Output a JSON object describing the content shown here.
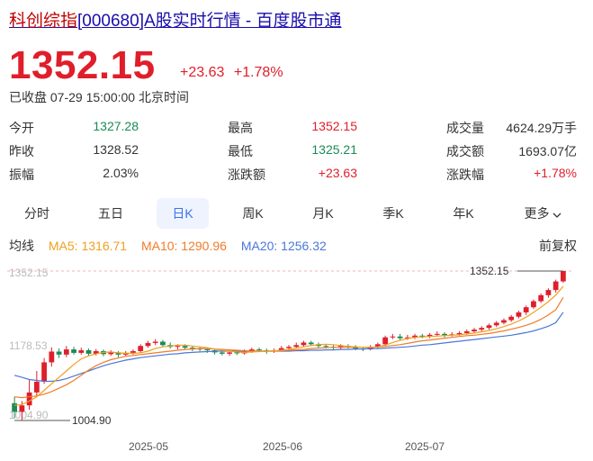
{
  "page": {
    "title_highlight": "科创综指",
    "title_rest": "[000680]A股实时行情 - 百度股市通"
  },
  "quote": {
    "price": "1352.15",
    "change": "+23.63",
    "change_pct": "+1.78%",
    "status": "已收盘 07-29 15:00:00 北京时间"
  },
  "stats": [
    [
      {
        "label": "今开",
        "value": "1327.28",
        "color": "green"
      },
      {
        "label": "最高",
        "value": "1352.15",
        "color": "red"
      },
      {
        "label": "成交量",
        "value": "4624.29万手",
        "color": "plain"
      }
    ],
    [
      {
        "label": "昨收",
        "value": "1328.52",
        "color": "plain"
      },
      {
        "label": "最低",
        "value": "1325.21",
        "color": "green"
      },
      {
        "label": "成交额",
        "value": "1693.07亿",
        "color": "plain"
      }
    ],
    [
      {
        "label": "振幅",
        "value": "2.03%",
        "color": "plain"
      },
      {
        "label": "涨跌额",
        "value": "+23.63",
        "color": "red"
      },
      {
        "label": "涨跌幅",
        "value": "+1.78%",
        "color": "red"
      }
    ]
  ],
  "tabs": [
    "分时",
    "五日",
    "日K",
    "周K",
    "月K",
    "季K",
    "年K",
    "更多"
  ],
  "active_tab": "日K",
  "legend": {
    "label": "均线",
    "ma5": "MA5: 1316.71",
    "ma10": "MA10: 1290.96",
    "ma20": "MA20: 1256.32",
    "adjust": "前复权"
  },
  "colors": {
    "up": "#e01e2b",
    "down": "#1a8a56",
    "ma5": "#f0a020",
    "ma10": "#f07b2a",
    "ma20": "#4a78d8",
    "accent": "#3a73e8"
  },
  "chart_data": {
    "type": "candlestick",
    "y_labels": [
      "1352.15",
      "1178.53",
      "1004.90"
    ],
    "max_marker": "1352.15",
    "min_marker": "1004.90",
    "x_labels": [
      "2025-05",
      "2025-06",
      "2025-07"
    ],
    "ylim": [
      1004.9,
      1352.15
    ],
    "candles": [
      [
        1045,
        1025,
        1060,
        1010
      ],
      [
        1025,
        1040,
        1050,
        1005
      ],
      [
        1040,
        1070,
        1100,
        1030
      ],
      [
        1070,
        1095,
        1120,
        1060
      ],
      [
        1095,
        1140,
        1150,
        1090
      ],
      [
        1140,
        1165,
        1175,
        1130
      ],
      [
        1165,
        1158,
        1172,
        1150
      ],
      [
        1158,
        1170,
        1178,
        1152
      ],
      [
        1170,
        1162,
        1176,
        1158
      ],
      [
        1162,
        1168,
        1174,
        1158
      ],
      [
        1168,
        1160,
        1172,
        1155
      ],
      [
        1160,
        1166,
        1171,
        1156
      ],
      [
        1166,
        1159,
        1170,
        1154
      ],
      [
        1159,
        1163,
        1168,
        1155
      ],
      [
        1163,
        1158,
        1166,
        1152
      ],
      [
        1158,
        1162,
        1166,
        1154
      ],
      [
        1162,
        1166,
        1170,
        1158
      ],
      [
        1166,
        1178,
        1182,
        1162
      ],
      [
        1178,
        1185,
        1190,
        1174
      ],
      [
        1185,
        1188,
        1194,
        1180
      ],
      [
        1188,
        1180,
        1192,
        1176
      ],
      [
        1180,
        1176,
        1186,
        1172
      ],
      [
        1176,
        1178,
        1182,
        1170
      ],
      [
        1178,
        1174,
        1182,
        1170
      ],
      [
        1174,
        1172,
        1178,
        1166
      ],
      [
        1172,
        1170,
        1176,
        1166
      ],
      [
        1170,
        1168,
        1174,
        1162
      ],
      [
        1168,
        1163,
        1172,
        1158
      ],
      [
        1163,
        1160,
        1168,
        1156
      ],
      [
        1160,
        1163,
        1167,
        1155
      ],
      [
        1163,
        1161,
        1166,
        1157
      ],
      [
        1161,
        1165,
        1170,
        1158
      ],
      [
        1165,
        1170,
        1174,
        1162
      ],
      [
        1170,
        1168,
        1174,
        1164
      ],
      [
        1168,
        1165,
        1172,
        1160
      ],
      [
        1165,
        1168,
        1172,
        1162
      ],
      [
        1168,
        1173,
        1178,
        1165
      ],
      [
        1173,
        1176,
        1180,
        1170
      ],
      [
        1176,
        1180,
        1186,
        1172
      ],
      [
        1180,
        1186,
        1190,
        1176
      ],
      [
        1186,
        1182,
        1190,
        1178
      ],
      [
        1182,
        1178,
        1186,
        1174
      ],
      [
        1178,
        1176,
        1182,
        1172
      ],
      [
        1176,
        1174,
        1180,
        1170
      ],
      [
        1174,
        1178,
        1182,
        1170
      ],
      [
        1178,
        1176,
        1182,
        1172
      ],
      [
        1176,
        1172,
        1180,
        1168
      ],
      [
        1172,
        1170,
        1176,
        1166
      ],
      [
        1170,
        1176,
        1180,
        1168
      ],
      [
        1176,
        1182,
        1186,
        1172
      ],
      [
        1182,
        1198,
        1202,
        1178
      ],
      [
        1198,
        1200,
        1206,
        1194
      ],
      [
        1200,
        1196,
        1206,
        1192
      ],
      [
        1196,
        1198,
        1204,
        1192
      ],
      [
        1198,
        1202,
        1206,
        1194
      ],
      [
        1202,
        1200,
        1206,
        1196
      ],
      [
        1200,
        1204,
        1208,
        1196
      ],
      [
        1204,
        1206,
        1212,
        1200
      ],
      [
        1206,
        1203,
        1210,
        1198
      ],
      [
        1203,
        1205,
        1210,
        1200
      ],
      [
        1205,
        1208,
        1212,
        1202
      ],
      [
        1208,
        1212,
        1216,
        1204
      ],
      [
        1212,
        1216,
        1220,
        1208
      ],
      [
        1216,
        1220,
        1224,
        1212
      ],
      [
        1220,
        1226,
        1230,
        1216
      ],
      [
        1226,
        1232,
        1236,
        1222
      ],
      [
        1232,
        1238,
        1242,
        1228
      ],
      [
        1238,
        1246,
        1250,
        1234
      ],
      [
        1246,
        1256,
        1260,
        1242
      ],
      [
        1256,
        1268,
        1272,
        1250
      ],
      [
        1268,
        1282,
        1286,
        1264
      ],
      [
        1282,
        1296,
        1300,
        1278
      ],
      [
        1296,
        1308,
        1312,
        1290
      ],
      [
        1308,
        1328,
        1332,
        1302
      ],
      [
        1328,
        1352.15,
        1352.15,
        1325
      ]
    ],
    "ma5": [
      1040,
      1042,
      1050,
      1060,
      1075,
      1090,
      1105,
      1120,
      1135,
      1148,
      1155,
      1160,
      1163,
      1164,
      1162,
      1161,
      1161,
      1162,
      1166,
      1172,
      1176,
      1178,
      1180,
      1180,
      1178,
      1176,
      1174,
      1171,
      1168,
      1166,
      1164,
      1163,
      1164,
      1165,
      1166,
      1167,
      1168,
      1170,
      1173,
      1176,
      1179,
      1181,
      1182,
      1181,
      1179,
      1177,
      1176,
      1175,
      1175,
      1176,
      1180,
      1186,
      1191,
      1195,
      1198,
      1199,
      1200,
      1201,
      1202,
      1203,
      1204,
      1206,
      1208,
      1211,
      1214,
      1218,
      1223,
      1229,
      1236,
      1245,
      1256,
      1268,
      1281,
      1296,
      1316.71
    ],
    "ma10": [
      1060,
      1058,
      1060,
      1062,
      1066,
      1072,
      1080,
      1088,
      1098,
      1110,
      1122,
      1132,
      1140,
      1146,
      1150,
      1154,
      1156,
      1158,
      1160,
      1162,
      1164,
      1166,
      1168,
      1170,
      1171,
      1172,
      1172,
      1171,
      1170,
      1169,
      1168,
      1167,
      1166,
      1166,
      1166,
      1166,
      1167,
      1168,
      1169,
      1170,
      1172,
      1173,
      1174,
      1175,
      1175,
      1175,
      1175,
      1175,
      1175,
      1176,
      1177,
      1179,
      1181,
      1184,
      1187,
      1190,
      1192,
      1194,
      1196,
      1198,
      1200,
      1202,
      1203,
      1205,
      1207,
      1210,
      1213,
      1217,
      1221,
      1226,
      1232,
      1240,
      1250,
      1262,
      1290.96
    ],
    "ma20": [
      1110,
      1105,
      1100,
      1098,
      1096,
      1096,
      1098,
      1102,
      1108,
      1114,
      1120,
      1126,
      1132,
      1137,
      1141,
      1145,
      1148,
      1151,
      1153,
      1155,
      1157,
      1159,
      1160,
      1162,
      1163,
      1164,
      1165,
      1166,
      1166,
      1166,
      1166,
      1166,
      1166,
      1166,
      1166,
      1166,
      1166,
      1166,
      1167,
      1167,
      1168,
      1168,
      1169,
      1169,
      1170,
      1170,
      1171,
      1171,
      1172,
      1172,
      1173,
      1174,
      1175,
      1176,
      1178,
      1180,
      1181,
      1183,
      1185,
      1187,
      1189,
      1191,
      1193,
      1195,
      1197,
      1199,
      1201,
      1203,
      1206,
      1209,
      1213,
      1218,
      1224,
      1232,
      1256.32
    ]
  }
}
